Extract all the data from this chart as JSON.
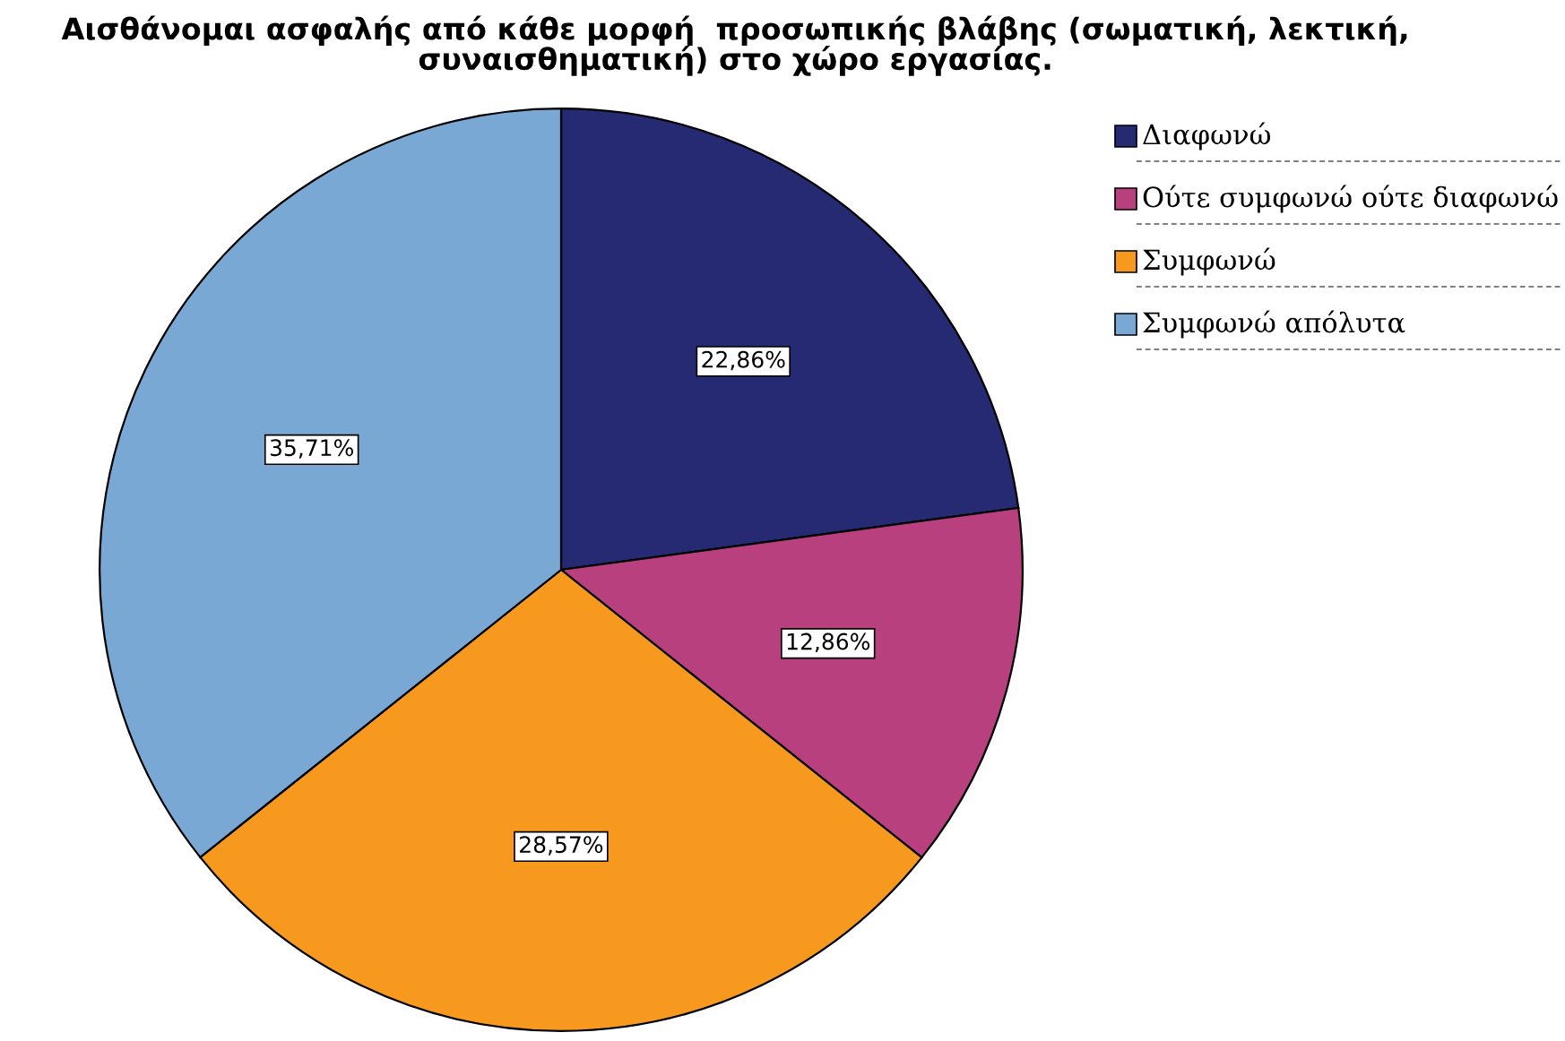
{
  "chart_data": {
    "type": "pie",
    "title": "Αισθάνομαι ασφαλής από κάθε μορφή  προσωπικής βλάβης (σωματική, λεκτική,\nσυναισθηματική) στο χώρο εργασίας.",
    "categories": [
      "Διαφωνώ",
      "Ούτε συμφωνώ ούτε διαφωνώ",
      "Συμφωνώ",
      "Συμφωνώ απόλυτα"
    ],
    "values": [
      22.86,
      12.86,
      28.57,
      35.71
    ],
    "colors": [
      "#262a72",
      "#b8407e",
      "#f7991f",
      "#7aa8d4"
    ],
    "value_labels": [
      "22,86%",
      "12,86%",
      "28,57%",
      "35,71%"
    ],
    "legend": "top right"
  }
}
